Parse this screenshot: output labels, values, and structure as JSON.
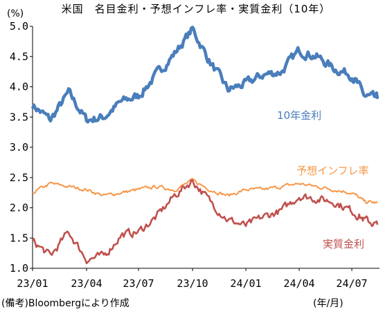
{
  "title": "米国　名目金利・予想インフレ率・実質金利（10年）",
  "unit": "(%)",
  "note": "(備考)Bloombergにより作成",
  "x_unit": "(年/月)",
  "chart_data": {
    "type": "line",
    "title": "米国　名目金利・予想インフレ率・実質金利（10年）",
    "ylabel": "(%)",
    "xlabel": "(年/月)",
    "ylim": [
      1.0,
      5.0
    ],
    "yticks": [
      "5.0",
      "4.5",
      "4.0",
      "3.5",
      "3.0",
      "2.5",
      "2.0",
      "1.5",
      "1.0"
    ],
    "xticks": [
      "23/01",
      "23/04",
      "23/07",
      "23/10",
      "24/01",
      "24/04",
      "24/07"
    ],
    "grid": false,
    "x": [
      "2023-01",
      "2023-02",
      "2023-03",
      "2023-04",
      "2023-05",
      "2023-06",
      "2023-07",
      "2023-08",
      "2023-09",
      "2023-10",
      "2023-11",
      "2023-12",
      "2024-01",
      "2024-02",
      "2024-03",
      "2024-04",
      "2024-05",
      "2024-06",
      "2024-07",
      "2024-08",
      "2024-09"
    ],
    "series": [
      {
        "name": "10年金利",
        "color": "#4a7ebb",
        "values": [
          3.7,
          3.45,
          3.9,
          3.45,
          3.5,
          3.75,
          3.85,
          4.2,
          4.55,
          4.95,
          4.4,
          3.95,
          4.05,
          4.2,
          4.25,
          4.6,
          4.5,
          4.3,
          4.2,
          3.85,
          3.8
        ]
      },
      {
        "name": "予想インフレ率",
        "color": "#f79646",
        "values": [
          2.25,
          2.4,
          2.35,
          2.3,
          2.2,
          2.25,
          2.3,
          2.35,
          2.3,
          2.45,
          2.3,
          2.2,
          2.3,
          2.3,
          2.35,
          2.4,
          2.35,
          2.3,
          2.25,
          2.1,
          2.08
        ]
      },
      {
        "name": "実質金利",
        "color": "#c0504d",
        "values": [
          1.45,
          1.2,
          1.6,
          1.15,
          1.2,
          1.55,
          1.6,
          1.85,
          2.2,
          2.45,
          2.1,
          1.8,
          1.7,
          1.85,
          1.95,
          2.2,
          2.15,
          2.1,
          1.95,
          1.8,
          1.72
        ]
      }
    ]
  }
}
